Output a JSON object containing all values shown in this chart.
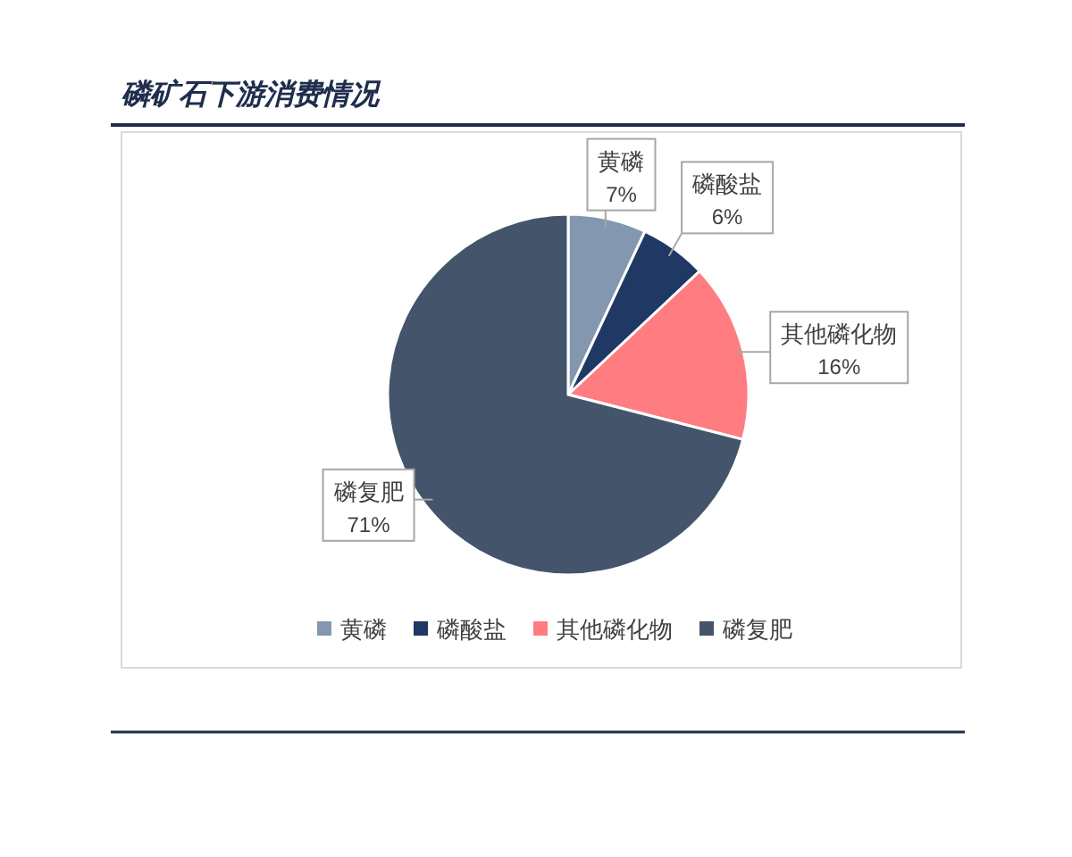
{
  "chart_data": {
    "type": "pie",
    "title": "磷矿石下游消费情况",
    "categories": [
      "黄磷",
      "磷酸盐",
      "其他磷化物",
      "磷复肥"
    ],
    "values": [
      7,
      6,
      16,
      71
    ],
    "colors": [
      "#8497b0",
      "#1f3864",
      "#ff7c80",
      "#44546a"
    ],
    "value_labels": [
      "7%",
      "6%",
      "16%",
      "71%"
    ],
    "legend": "bottom"
  }
}
